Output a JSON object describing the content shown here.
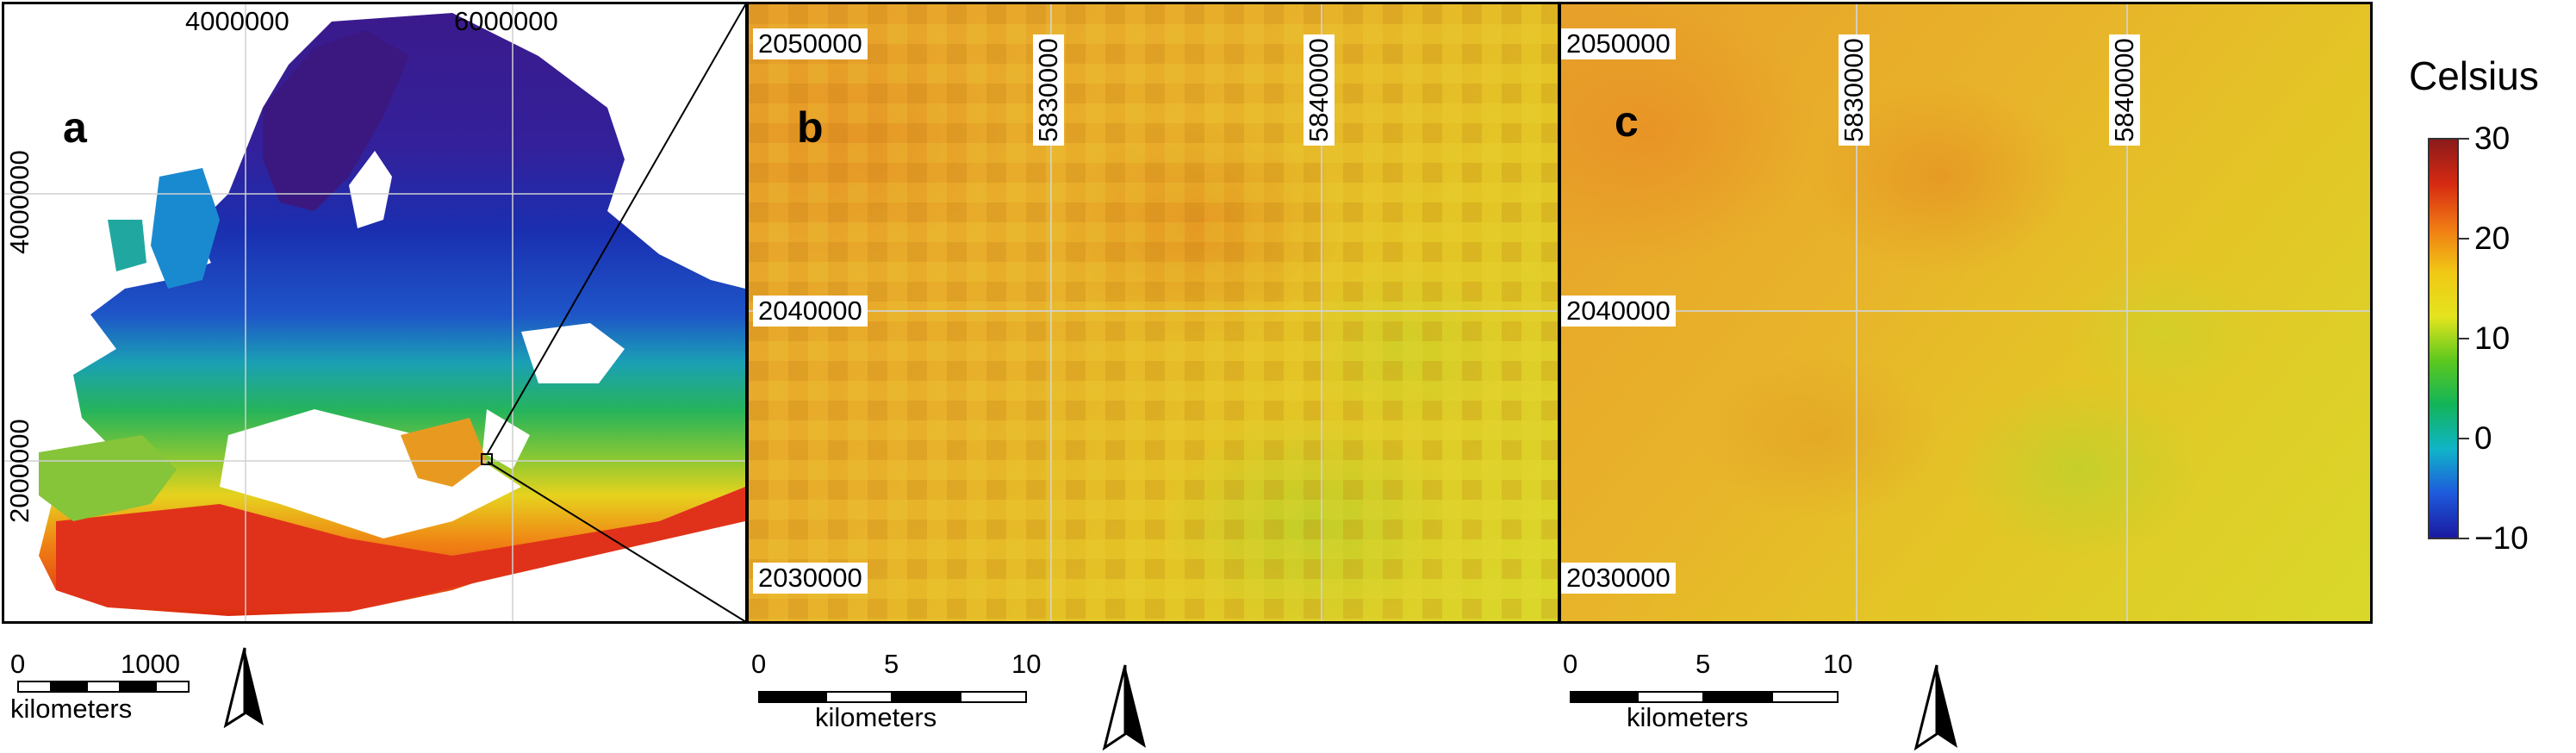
{
  "panels": {
    "a": {
      "letter": "a",
      "x_ticks": [
        "4000000",
        "6000000"
      ],
      "y_ticks": [
        "4000000",
        "2000000"
      ],
      "scale": {
        "ticks": [
          "0",
          "1000"
        ],
        "unit": "kilometers"
      }
    },
    "b": {
      "letter": "b",
      "x_ticks": [
        "5830000",
        "5840000"
      ],
      "y_ticks": [
        "2050000",
        "2040000",
        "2030000"
      ],
      "scale": {
        "ticks": [
          "0",
          "5",
          "10"
        ],
        "unit": "kilometers"
      }
    },
    "c": {
      "letter": "c",
      "x_ticks": [
        "5830000",
        "5840000"
      ],
      "y_ticks": [
        "2050000",
        "2040000",
        "2030000"
      ],
      "scale": {
        "ticks": [
          "0",
          "5",
          "10"
        ],
        "unit": "kilometers"
      }
    }
  },
  "legend": {
    "title": "Celsius",
    "ticks": [
      "30",
      "20",
      "10",
      "0",
      "−10"
    ],
    "tick_values": [
      30,
      20,
      10,
      0,
      -10
    ],
    "range": [
      -10,
      30
    ],
    "colors": [
      "#8b1a1a",
      "#d62a12",
      "#f07a14",
      "#f0c814",
      "#e4e41e",
      "#5cc81e",
      "#12b45a",
      "#10b4c8",
      "#1e5adc",
      "#1a1aa0"
    ]
  },
  "icons": {
    "north_arrow": "north-arrow-icon"
  }
}
